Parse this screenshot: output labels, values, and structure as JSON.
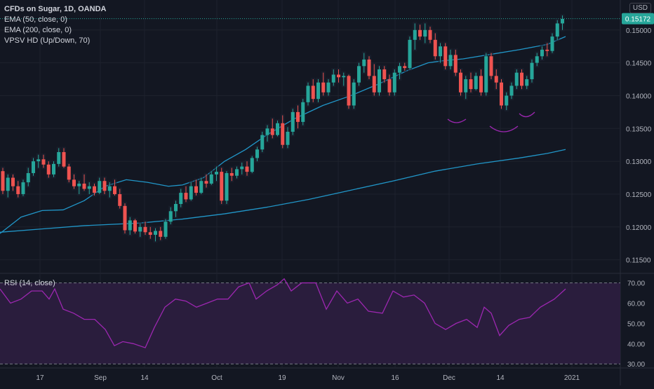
{
  "legend": {
    "title": "CFDs on Sugar, 1D, OANDA",
    "ema50": "EMA (50, close, 0)",
    "ema200": "EMA (200, close, 0)",
    "vpsv": "VPSV HD (Up/Down, 70)"
  },
  "rsi_label": "RSI (14, close)",
  "currency": "USD",
  "colors": {
    "background": "#131722",
    "up": "#26a69a",
    "down": "#ef5350",
    "ema": "#2196c8",
    "rsi_line": "#9c27b0",
    "rsi_band": "#2a1d3d",
    "price_tag": "#26a69a",
    "annotation": "#9c27b0"
  },
  "chart_data": [
    {
      "type": "candlestick",
      "y_ticks": [
        "0.15000",
        "0.14500",
        "0.14000",
        "0.13500",
        "0.13000",
        "0.12500",
        "0.12000",
        "0.11500"
      ],
      "x_ticks": [
        "17",
        "Sep",
        "14",
        "Oct",
        "19",
        "Nov",
        "16",
        "Dec",
        "14",
        "2021"
      ],
      "current_price": "0.15172",
      "ylim": [
        0.114,
        0.1535
      ],
      "grid": true,
      "candles_approx": [
        [
          0.1285,
          0.129,
          0.125,
          0.1255
        ],
        [
          0.1255,
          0.128,
          0.1245,
          0.1275
        ],
        [
          0.1275,
          0.128,
          0.1255,
          0.1262
        ],
        [
          0.1262,
          0.127,
          0.1245,
          0.125
        ],
        [
          0.125,
          0.1272,
          0.1247,
          0.1268
        ],
        [
          0.1268,
          0.129,
          0.1262,
          0.1282
        ],
        [
          0.1282,
          0.1305,
          0.1278,
          0.13
        ],
        [
          0.13,
          0.131,
          0.129,
          0.1303
        ],
        [
          0.1303,
          0.131,
          0.129,
          0.1295
        ],
        [
          0.1295,
          0.13,
          0.1275,
          0.128
        ],
        [
          0.128,
          0.13,
          0.1276,
          0.1296
        ],
        [
          0.1296,
          0.132,
          0.1292,
          0.1314
        ],
        [
          0.1314,
          0.132,
          0.129,
          0.1292
        ],
        [
          0.1292,
          0.1296,
          0.1268,
          0.1272
        ],
        [
          0.1272,
          0.128,
          0.1258,
          0.1262
        ],
        [
          0.1262,
          0.127,
          0.125,
          0.1266
        ],
        [
          0.1266,
          0.128,
          0.1255,
          0.1258
        ],
        [
          0.1258,
          0.1268,
          0.125,
          0.1262
        ],
        [
          0.1262,
          0.1266,
          0.1248,
          0.1252
        ],
        [
          0.1252,
          0.1275,
          0.125,
          0.127
        ],
        [
          0.127,
          0.1275,
          0.125,
          0.1255
        ],
        [
          0.1255,
          0.1268,
          0.1245,
          0.1262
        ],
        [
          0.1262,
          0.1272,
          0.1248,
          0.125
        ],
        [
          0.125,
          0.1258,
          0.1228,
          0.1232
        ],
        [
          0.1232,
          0.1236,
          0.119,
          0.1195
        ],
        [
          0.1195,
          0.1215,
          0.1188,
          0.121
        ],
        [
          0.121,
          0.1212,
          0.119,
          0.1193
        ],
        [
          0.1193,
          0.1205,
          0.1185,
          0.12
        ],
        [
          0.12,
          0.1208,
          0.1188,
          0.1192
        ],
        [
          0.1192,
          0.12,
          0.1182,
          0.1188
        ],
        [
          0.1188,
          0.1198,
          0.1178,
          0.1194
        ],
        [
          0.1194,
          0.12,
          0.118,
          0.1185
        ],
        [
          0.1185,
          0.1212,
          0.1182,
          0.1208
        ],
        [
          0.1208,
          0.123,
          0.1204,
          0.1224
        ],
        [
          0.1224,
          0.124,
          0.1215,
          0.1235
        ],
        [
          0.1235,
          0.1258,
          0.123,
          0.1252
        ],
        [
          0.1252,
          0.1262,
          0.1238,
          0.1242
        ],
        [
          0.1242,
          0.1268,
          0.124,
          0.1262
        ],
        [
          0.1262,
          0.1272,
          0.1248,
          0.1252
        ],
        [
          0.1252,
          0.1275,
          0.125,
          0.127
        ],
        [
          0.127,
          0.128,
          0.126,
          0.1266
        ],
        [
          0.1266,
          0.1285,
          0.1264,
          0.128
        ],
        [
          0.128,
          0.1292,
          0.127,
          0.1284
        ],
        [
          0.1284,
          0.129,
          0.1235,
          0.124
        ],
        [
          0.124,
          0.1285,
          0.1235,
          0.1282
        ],
        [
          0.1282,
          0.129,
          0.127,
          0.1278
        ],
        [
          0.1278,
          0.1292,
          0.1274,
          0.1288
        ],
        [
          0.1288,
          0.1298,
          0.128,
          0.1292
        ],
        [
          0.1292,
          0.13,
          0.1278,
          0.1284
        ],
        [
          0.1284,
          0.1308,
          0.1282,
          0.1305
        ],
        [
          0.1305,
          0.1322,
          0.13,
          0.1318
        ],
        [
          0.1318,
          0.1345,
          0.1314,
          0.134
        ],
        [
          0.134,
          0.1355,
          0.133,
          0.135
        ],
        [
          0.135,
          0.1365,
          0.1335,
          0.134
        ],
        [
          0.134,
          0.1362,
          0.1338,
          0.1358
        ],
        [
          0.1358,
          0.137,
          0.132,
          0.1325
        ],
        [
          0.1325,
          0.1352,
          0.132,
          0.1345
        ],
        [
          0.1345,
          0.138,
          0.134,
          0.1375
        ],
        [
          0.1375,
          0.1385,
          0.135,
          0.136
        ],
        [
          0.136,
          0.1395,
          0.1355,
          0.139
        ],
        [
          0.139,
          0.142,
          0.1385,
          0.1415
        ],
        [
          0.1415,
          0.1425,
          0.139,
          0.1395
        ],
        [
          0.1395,
          0.1425,
          0.139,
          0.142
        ],
        [
          0.142,
          0.1435,
          0.14,
          0.1405
        ],
        [
          0.1405,
          0.1425,
          0.14,
          0.142
        ],
        [
          0.142,
          0.144,
          0.1415,
          0.1432
        ],
        [
          0.1432,
          0.144,
          0.142,
          0.1428
        ],
        [
          0.1428,
          0.1435,
          0.1415,
          0.143
        ],
        [
          0.143,
          0.1432,
          0.138,
          0.1385
        ],
        [
          0.1385,
          0.1425,
          0.138,
          0.142
        ],
        [
          0.142,
          0.145,
          0.1415,
          0.1445
        ],
        [
          0.1445,
          0.1465,
          0.1435,
          0.1455
        ],
        [
          0.1455,
          0.146,
          0.1425,
          0.143
        ],
        [
          0.143,
          0.1448,
          0.14,
          0.1405
        ],
        [
          0.1405,
          0.1445,
          0.14,
          0.144
        ],
        [
          0.144,
          0.1445,
          0.142,
          0.1425
        ],
        [
          0.1425,
          0.1432,
          0.14,
          0.1405
        ],
        [
          0.1405,
          0.144,
          0.14,
          0.1435
        ],
        [
          0.1435,
          0.145,
          0.1425,
          0.1445
        ],
        [
          0.1445,
          0.145,
          0.1438,
          0.1442
        ],
        [
          0.1442,
          0.149,
          0.144,
          0.1485
        ],
        [
          0.1485,
          0.151,
          0.147,
          0.15
        ],
        [
          0.15,
          0.1508,
          0.1485,
          0.149
        ],
        [
          0.149,
          0.151,
          0.148,
          0.15
        ],
        [
          0.15,
          0.1505,
          0.148,
          0.1485
        ],
        [
          0.1485,
          0.1495,
          0.1455,
          0.146
        ],
        [
          0.146,
          0.148,
          0.145,
          0.1475
        ],
        [
          0.1475,
          0.148,
          0.144,
          0.1445
        ],
        [
          0.1445,
          0.147,
          0.144,
          0.1462
        ],
        [
          0.1462,
          0.147,
          0.143,
          0.1435
        ],
        [
          0.1435,
          0.144,
          0.14,
          0.1405
        ],
        [
          0.1405,
          0.143,
          0.1395,
          0.1425
        ],
        [
          0.1425,
          0.1435,
          0.1405,
          0.141
        ],
        [
          0.141,
          0.1435,
          0.1408,
          0.143
        ],
        [
          0.143,
          0.144,
          0.14,
          0.1405
        ],
        [
          0.1405,
          0.1465,
          0.14,
          0.146
        ],
        [
          0.146,
          0.1465,
          0.1425,
          0.143
        ],
        [
          0.143,
          0.144,
          0.141,
          0.142
        ],
        [
          0.142,
          0.1425,
          0.138,
          0.1385
        ],
        [
          0.1385,
          0.1405,
          0.1378,
          0.14
        ],
        [
          0.14,
          0.142,
          0.1395,
          0.1415
        ],
        [
          0.1415,
          0.144,
          0.141,
          0.1435
        ],
        [
          0.1435,
          0.144,
          0.141,
          0.1415
        ],
        [
          0.1415,
          0.143,
          0.141,
          0.1425
        ],
        [
          0.1425,
          0.1455,
          0.142,
          0.145
        ],
        [
          0.145,
          0.1465,
          0.1445,
          0.146
        ],
        [
          0.146,
          0.1475,
          0.1455,
          0.147
        ],
        [
          0.147,
          0.148,
          0.146,
          0.1468
        ],
        [
          0.1468,
          0.1495,
          0.1465,
          0.149
        ],
        [
          0.149,
          0.1515,
          0.1485,
          0.151
        ],
        [
          0.151,
          0.1522,
          0.15,
          0.1517
        ]
      ],
      "ema50_approx": [
        [
          0,
          0.119
        ],
        [
          30,
          0.1215
        ],
        [
          60,
          0.1225
        ],
        [
          90,
          0.1226
        ],
        [
          120,
          0.124
        ],
        [
          150,
          0.1262
        ],
        [
          180,
          0.1272
        ],
        [
          210,
          0.1268
        ],
        [
          240,
          0.1262
        ],
        [
          260,
          0.1264
        ],
        [
          290,
          0.1275
        ],
        [
          320,
          0.13
        ],
        [
          350,
          0.1318
        ],
        [
          380,
          0.134
        ],
        [
          420,
          0.1365
        ],
        [
          460,
          0.1385
        ],
        [
          500,
          0.14
        ],
        [
          540,
          0.1418
        ],
        [
          580,
          0.1438
        ],
        [
          610,
          0.145
        ],
        [
          630,
          0.1453
        ],
        [
          660,
          0.1456
        ],
        [
          700,
          0.1463
        ],
        [
          740,
          0.147
        ],
        [
          780,
          0.1478
        ],
        [
          806,
          0.149
        ]
      ],
      "ema200_approx": [
        [
          0,
          0.1192
        ],
        [
          60,
          0.1197
        ],
        [
          120,
          0.1202
        ],
        [
          200,
          0.1206
        ],
        [
          260,
          0.1212
        ],
        [
          320,
          0.122
        ],
        [
          380,
          0.123
        ],
        [
          440,
          0.1242
        ],
        [
          500,
          0.1256
        ],
        [
          560,
          0.127
        ],
        [
          620,
          0.1285
        ],
        [
          680,
          0.1296
        ],
        [
          740,
          0.1305
        ],
        [
          780,
          0.1312
        ],
        [
          806,
          0.1318
        ]
      ]
    },
    {
      "type": "line",
      "name": "RSI (14, close)",
      "y_ticks": [
        "70.00",
        "60.00",
        "50.00",
        "40.00",
        "30.00"
      ],
      "ylim": [
        28,
        74
      ],
      "band": [
        30,
        70
      ],
      "values_approx": [
        [
          0,
          67
        ],
        [
          15,
          60
        ],
        [
          30,
          62
        ],
        [
          45,
          66
        ],
        [
          60,
          66
        ],
        [
          70,
          62
        ],
        [
          78,
          67
        ],
        [
          90,
          57
        ],
        [
          105,
          55
        ],
        [
          120,
          52
        ],
        [
          135,
          52
        ],
        [
          150,
          47
        ],
        [
          163,
          39
        ],
        [
          175,
          41
        ],
        [
          190,
          40
        ],
        [
          207,
          38
        ],
        [
          220,
          48
        ],
        [
          235,
          58
        ],
        [
          250,
          62
        ],
        [
          265,
          61
        ],
        [
          280,
          58
        ],
        [
          295,
          60
        ],
        [
          310,
          62
        ],
        [
          325,
          62
        ],
        [
          340,
          68
        ],
        [
          355,
          70
        ],
        [
          365,
          62
        ],
        [
          380,
          66
        ],
        [
          395,
          69
        ],
        [
          405,
          72
        ],
        [
          415,
          66
        ],
        [
          430,
          70
        ],
        [
          450,
          70
        ],
        [
          465,
          57
        ],
        [
          480,
          66
        ],
        [
          495,
          60
        ],
        [
          510,
          62
        ],
        [
          525,
          56
        ],
        [
          545,
          55
        ],
        [
          560,
          66
        ],
        [
          575,
          63
        ],
        [
          590,
          64
        ],
        [
          605,
          60
        ],
        [
          620,
          50
        ],
        [
          635,
          47
        ],
        [
          650,
          50
        ],
        [
          665,
          52
        ],
        [
          680,
          48
        ],
        [
          690,
          58
        ],
        [
          700,
          55
        ],
        [
          712,
          44
        ],
        [
          725,
          49
        ],
        [
          740,
          52
        ],
        [
          755,
          53
        ],
        [
          770,
          58
        ],
        [
          790,
          62
        ],
        [
          806,
          67
        ]
      ]
    }
  ]
}
